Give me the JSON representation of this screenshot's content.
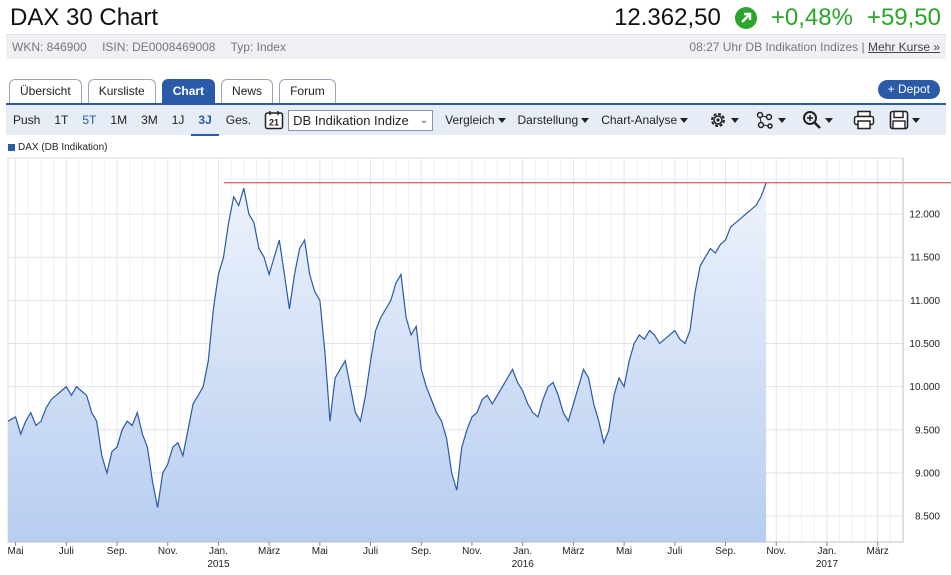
{
  "header": {
    "title": "DAX 30 Chart",
    "price": "12.362,50",
    "change_pct": "+0,48%",
    "change_abs": "+59,50",
    "up_color": "#2ba52b"
  },
  "info": {
    "wkn": "WKN: 846900",
    "isin": "ISIN: DE0008469008",
    "typ": "Typ: Index",
    "timestamp": "08:27 Uhr DB Indikation Indizes",
    "separator": "|",
    "more_link": "Mehr Kurse »"
  },
  "tabs": [
    {
      "label": "Übersicht"
    },
    {
      "label": "Kursliste"
    },
    {
      "label": "Chart"
    },
    {
      "label": "News"
    },
    {
      "label": "Forum"
    }
  ],
  "depot_button": "+ Depot",
  "toolbar": {
    "periods": [
      "Push",
      "1T",
      "5T",
      "1M",
      "3M",
      "1J",
      "3J",
      "Ges."
    ],
    "selected_period": "3J",
    "calendar_day": "21",
    "source_select": "DB Indikation Indize",
    "menus": [
      "Vergleich",
      "Darstellung",
      "Chart-Analyse"
    ],
    "icons": [
      "gear-icon",
      "network-icon",
      "zoom-icon",
      "print-icon",
      "save-icon"
    ]
  },
  "legend": {
    "label": "DAX (DB Indikation)",
    "color": "#2a5aa8"
  },
  "chart_data": {
    "type": "area",
    "series_color": "#2a5aa8",
    "reference_line": {
      "value": 12362.5,
      "color": "#cc3333"
    },
    "y_ticks": [
      "12.000",
      "11.500",
      "11.000",
      "10.500",
      "10.000",
      "9.500",
      "9.000",
      "8.500"
    ],
    "y_tick_values": [
      12000,
      11500,
      11000,
      10500,
      10000,
      9500,
      9000,
      8500
    ],
    "ylim": [
      8200,
      12650
    ],
    "x_ticks": [
      {
        "label": "Mai",
        "year": ""
      },
      {
        "label": "Juli",
        "year": ""
      },
      {
        "label": "Sep.",
        "year": ""
      },
      {
        "label": "Nov.",
        "year": ""
      },
      {
        "label": "Jan.",
        "year": "2015"
      },
      {
        "label": "März",
        "year": ""
      },
      {
        "label": "Mai",
        "year": ""
      },
      {
        "label": "Juli",
        "year": ""
      },
      {
        "label": "Sep.",
        "year": ""
      },
      {
        "label": "Nov.",
        "year": ""
      },
      {
        "label": "Jan.",
        "year": "2016"
      },
      {
        "label": "März",
        "year": ""
      },
      {
        "label": "Mai",
        "year": ""
      },
      {
        "label": "Juli",
        "year": ""
      },
      {
        "label": "Sep.",
        "year": ""
      },
      {
        "label": "Nov.",
        "year": ""
      },
      {
        "label": "Jan.",
        "year": "2017"
      },
      {
        "label": "März",
        "year": ""
      }
    ],
    "x_tick_months": [
      0,
      2,
      4,
      6,
      8,
      10,
      12,
      14,
      16,
      18,
      20,
      22,
      24,
      26,
      28,
      30,
      32,
      34
    ],
    "x_start": "2014-04",
    "x_end": "2017-03",
    "values": [
      [
        -0.3,
        9600
      ],
      [
        0,
        9650
      ],
      [
        0.2,
        9450
      ],
      [
        0.4,
        9600
      ],
      [
        0.6,
        9700
      ],
      [
        0.8,
        9550
      ],
      [
        1.0,
        9600
      ],
      [
        1.2,
        9750
      ],
      [
        1.4,
        9850
      ],
      [
        1.6,
        9900
      ],
      [
        1.8,
        9950
      ],
      [
        2.0,
        10000
      ],
      [
        2.2,
        9900
      ],
      [
        2.4,
        10000
      ],
      [
        2.6,
        9950
      ],
      [
        2.8,
        9900
      ],
      [
        3.0,
        9700
      ],
      [
        3.2,
        9600
      ],
      [
        3.4,
        9200
      ],
      [
        3.6,
        9000
      ],
      [
        3.8,
        9250
      ],
      [
        4.0,
        9300
      ],
      [
        4.2,
        9500
      ],
      [
        4.4,
        9600
      ],
      [
        4.6,
        9550
      ],
      [
        4.8,
        9700
      ],
      [
        5.0,
        9450
      ],
      [
        5.2,
        9300
      ],
      [
        5.4,
        8900
      ],
      [
        5.6,
        8600
      ],
      [
        5.8,
        9000
      ],
      [
        6.0,
        9100
      ],
      [
        6.2,
        9300
      ],
      [
        6.4,
        9350
      ],
      [
        6.6,
        9200
      ],
      [
        6.8,
        9500
      ],
      [
        7.0,
        9800
      ],
      [
        7.2,
        9900
      ],
      [
        7.4,
        10000
      ],
      [
        7.6,
        10300
      ],
      [
        7.8,
        10900
      ],
      [
        8.0,
        11300
      ],
      [
        8.2,
        11500
      ],
      [
        8.4,
        11900
      ],
      [
        8.6,
        12200
      ],
      [
        8.8,
        12100
      ],
      [
        9.0,
        12300
      ],
      [
        9.2,
        12000
      ],
      [
        9.4,
        11900
      ],
      [
        9.6,
        11600
      ],
      [
        9.8,
        11500
      ],
      [
        10.0,
        11300
      ],
      [
        10.2,
        11500
      ],
      [
        10.4,
        11700
      ],
      [
        10.6,
        11300
      ],
      [
        10.8,
        10900
      ],
      [
        11.0,
        11300
      ],
      [
        11.2,
        11600
      ],
      [
        11.4,
        11700
      ],
      [
        11.6,
        11300
      ],
      [
        11.8,
        11100
      ],
      [
        12.0,
        11000
      ],
      [
        12.2,
        10400
      ],
      [
        12.4,
        9600
      ],
      [
        12.6,
        10100
      ],
      [
        12.8,
        10200
      ],
      [
        13.0,
        10300
      ],
      [
        13.2,
        10000
      ],
      [
        13.4,
        9700
      ],
      [
        13.6,
        9600
      ],
      [
        13.8,
        9900
      ],
      [
        14.0,
        10300
      ],
      [
        14.2,
        10650
      ],
      [
        14.4,
        10800
      ],
      [
        14.6,
        10900
      ],
      [
        14.8,
        11000
      ],
      [
        15.0,
        11200
      ],
      [
        15.2,
        11300
      ],
      [
        15.4,
        10800
      ],
      [
        15.6,
        10600
      ],
      [
        15.8,
        10700
      ],
      [
        16.0,
        10200
      ],
      [
        16.2,
        10000
      ],
      [
        16.4,
        9850
      ],
      [
        16.6,
        9700
      ],
      [
        16.8,
        9600
      ],
      [
        17.0,
        9400
      ],
      [
        17.2,
        9000
      ],
      [
        17.4,
        8800
      ],
      [
        17.6,
        9300
      ],
      [
        17.8,
        9500
      ],
      [
        18.0,
        9650
      ],
      [
        18.2,
        9700
      ],
      [
        18.4,
        9850
      ],
      [
        18.6,
        9900
      ],
      [
        18.8,
        9800
      ],
      [
        19.0,
        9900
      ],
      [
        19.2,
        10000
      ],
      [
        19.4,
        10100
      ],
      [
        19.6,
        10200
      ],
      [
        19.8,
        10050
      ],
      [
        20.0,
        9950
      ],
      [
        20.2,
        9800
      ],
      [
        20.4,
        9700
      ],
      [
        20.6,
        9650
      ],
      [
        20.8,
        9850
      ],
      [
        21.0,
        10000
      ],
      [
        21.2,
        10050
      ],
      [
        21.4,
        9900
      ],
      [
        21.6,
        9700
      ],
      [
        21.8,
        9600
      ],
      [
        22.0,
        9800
      ],
      [
        22.2,
        10000
      ],
      [
        22.4,
        10200
      ],
      [
        22.6,
        10100
      ],
      [
        22.8,
        9800
      ],
      [
        23.0,
        9600
      ],
      [
        23.2,
        9350
      ],
      [
        23.4,
        9500
      ],
      [
        23.6,
        9900
      ],
      [
        23.8,
        10100
      ],
      [
        24.0,
        10000
      ],
      [
        24.2,
        10300
      ],
      [
        24.4,
        10500
      ],
      [
        24.6,
        10600
      ],
      [
        24.8,
        10550
      ],
      [
        25.0,
        10650
      ],
      [
        25.2,
        10600
      ],
      [
        25.4,
        10500
      ],
      [
        25.6,
        10550
      ],
      [
        25.8,
        10600
      ],
      [
        26.0,
        10650
      ],
      [
        26.2,
        10550
      ],
      [
        26.4,
        10500
      ],
      [
        26.6,
        10650
      ],
      [
        26.8,
        11100
      ],
      [
        27.0,
        11400
      ],
      [
        27.2,
        11500
      ],
      [
        27.4,
        11600
      ],
      [
        27.6,
        11550
      ],
      [
        27.8,
        11650
      ],
      [
        28.0,
        11700
      ],
      [
        28.2,
        11850
      ],
      [
        28.4,
        11900
      ],
      [
        28.6,
        11950
      ],
      [
        28.8,
        12000
      ],
      [
        29.0,
        12050
      ],
      [
        29.2,
        12100
      ],
      [
        29.4,
        12200
      ],
      [
        29.6,
        12362
      ]
    ]
  }
}
